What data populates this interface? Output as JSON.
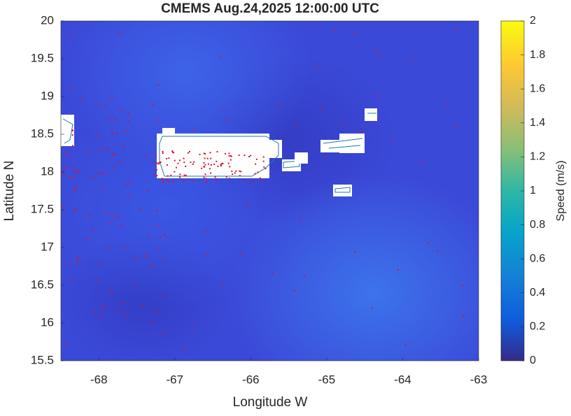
{
  "chart_data": {
    "type": "heatmap",
    "title": "CMEMS Aug.24,2025 12:00:00 UTC",
    "xlabel": "Longitude W",
    "ylabel": "Latitude N",
    "xlim": [
      -68.5,
      -63
    ],
    "xticks": [
      -68,
      -67,
      -66,
      -65,
      -64,
      -63
    ],
    "ylim": [
      15.5,
      20
    ],
    "yticks": [
      15.5,
      16,
      16.5,
      17,
      17.5,
      18,
      18.5,
      19,
      19.5,
      20
    ],
    "colorbar": {
      "label": "Speed (m/s)",
      "lim": [
        0,
        2
      ],
      "ticks": [
        0,
        0.2,
        0.4,
        0.6,
        0.8,
        1,
        1.2,
        1.4,
        1.6,
        1.8,
        2
      ]
    }
  }
}
